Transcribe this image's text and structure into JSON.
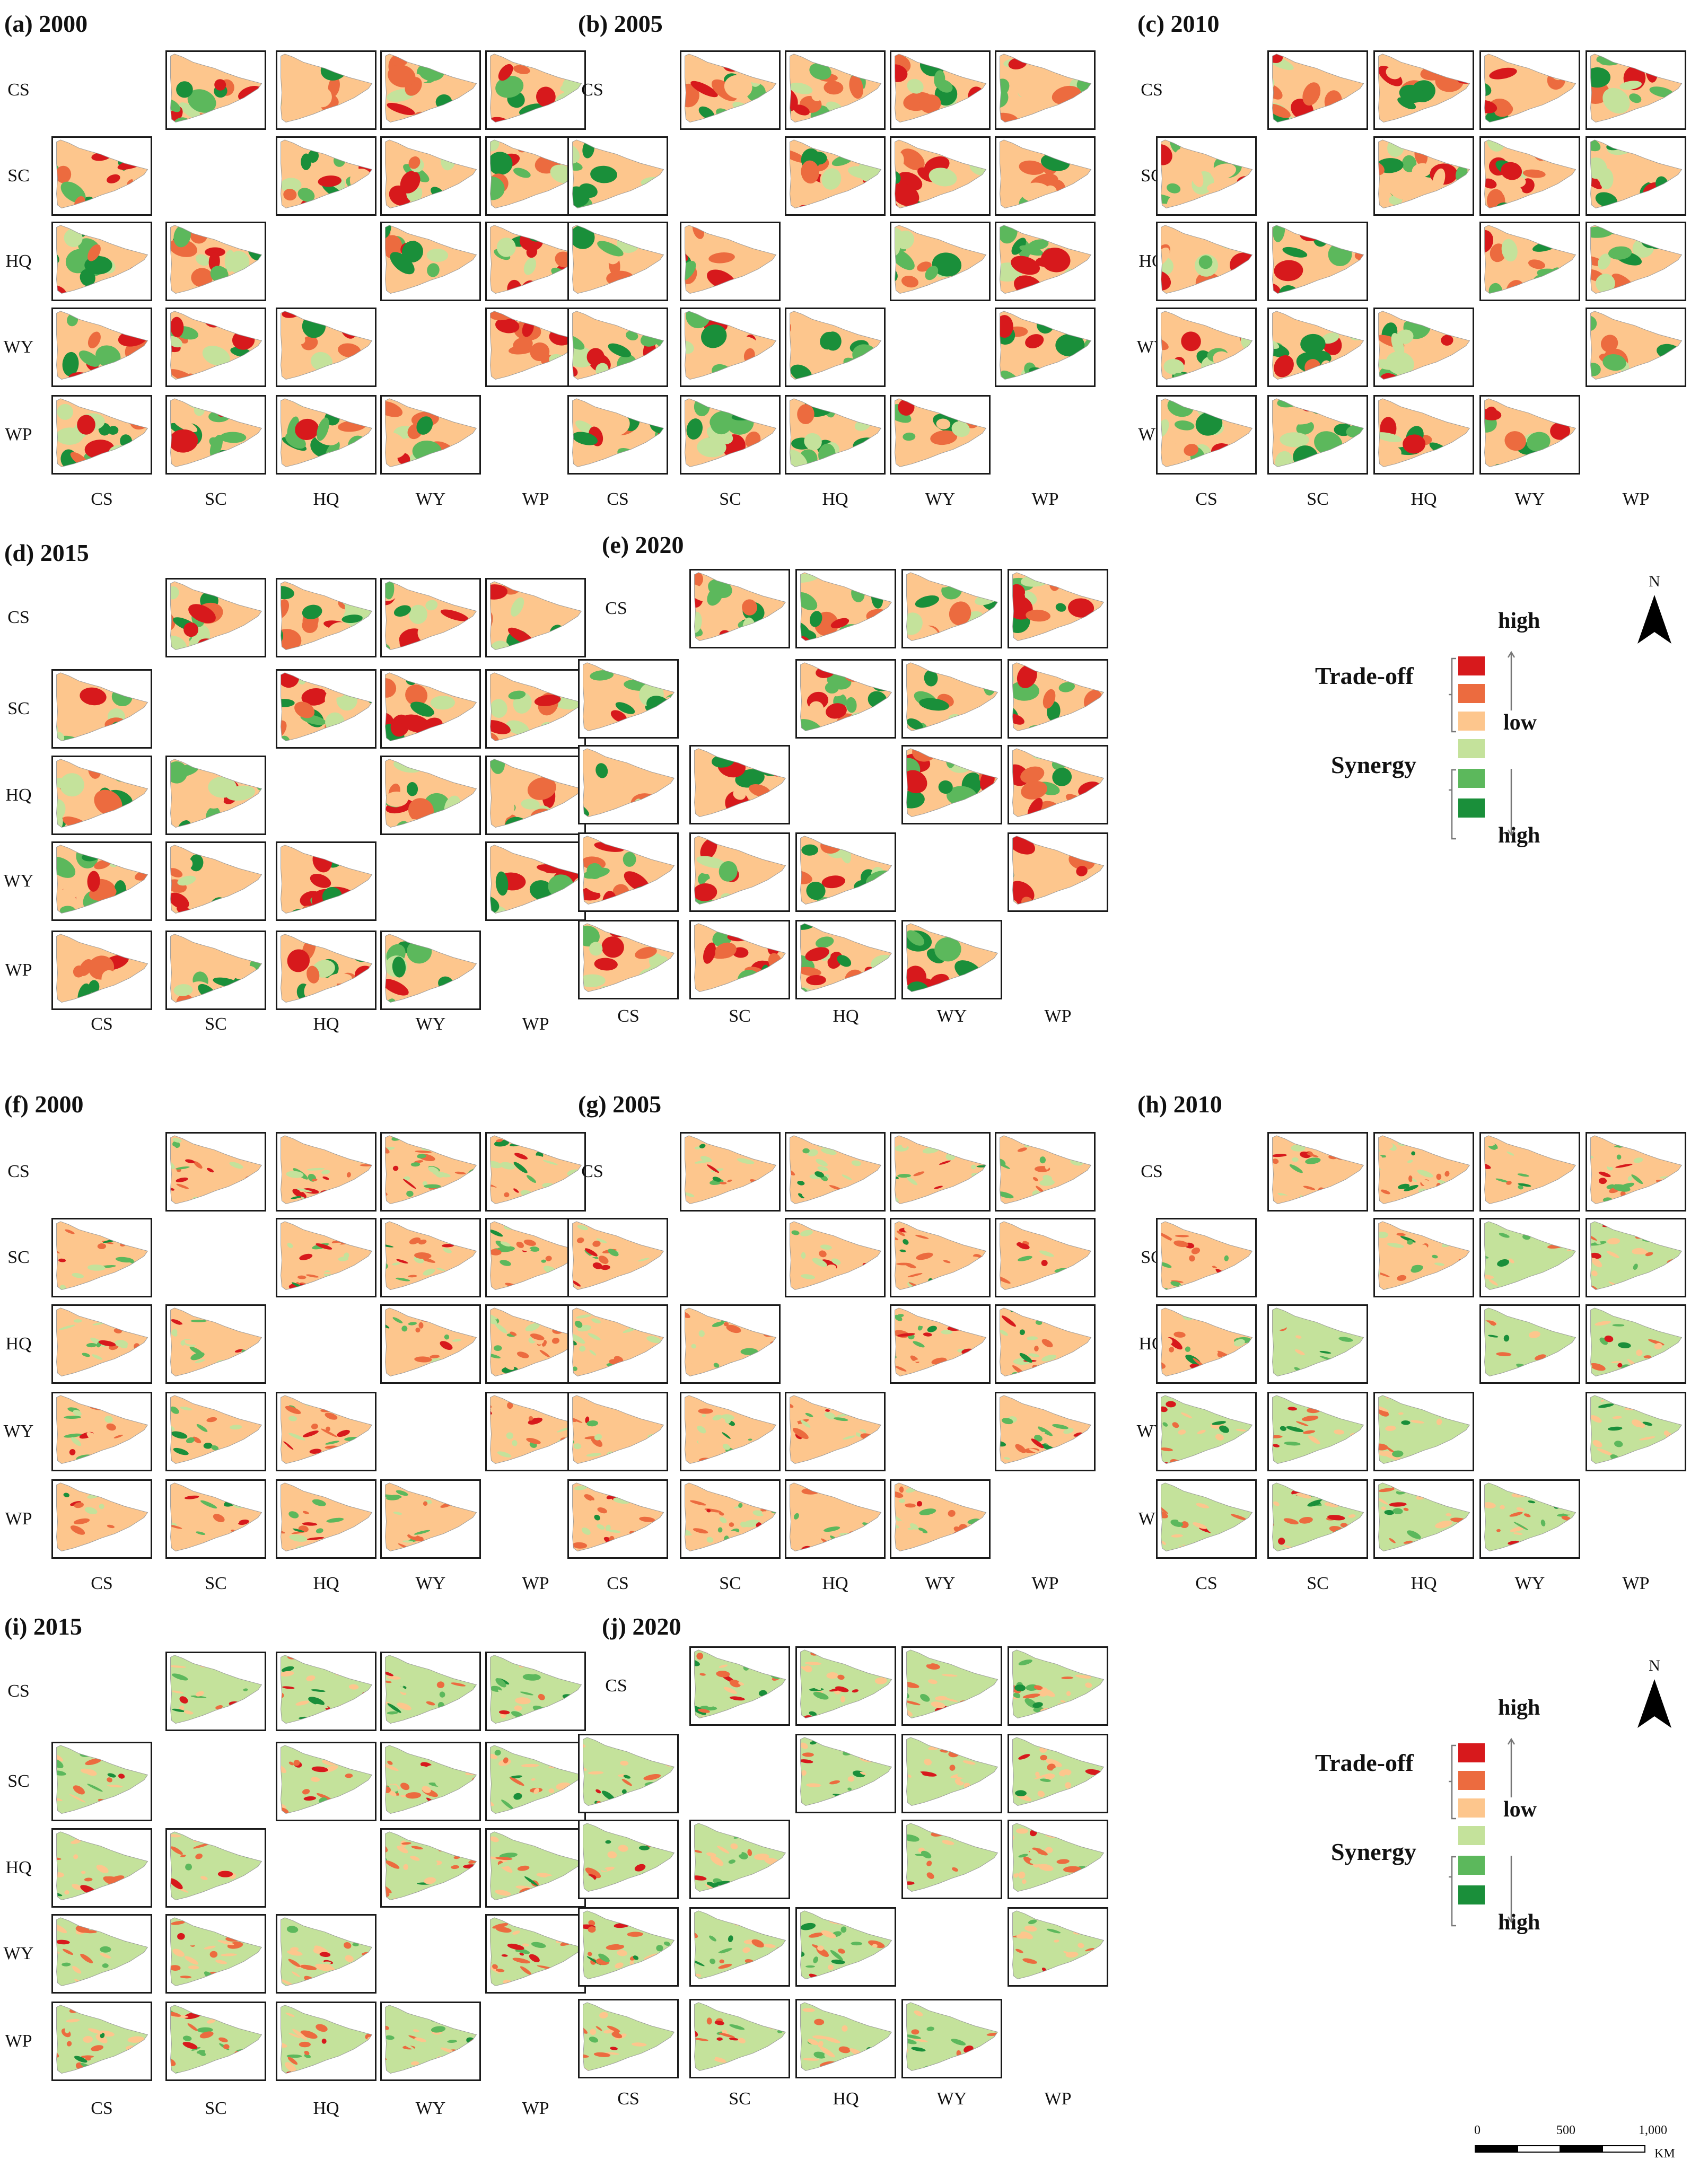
{
  "variables": [
    "CS",
    "SC",
    "HQ",
    "WY",
    "WP"
  ],
  "panels": [
    {
      "id": "a",
      "title": "(a) 2000",
      "palette": "A"
    },
    {
      "id": "b",
      "title": "(b) 2005",
      "palette": "A"
    },
    {
      "id": "c",
      "title": "(c) 2010",
      "palette": "A"
    },
    {
      "id": "d",
      "title": "(d) 2015",
      "palette": "A"
    },
    {
      "id": "e",
      "title": "(e) 2020",
      "palette": "A"
    },
    {
      "id": "f",
      "title": "(f) 2000",
      "palette": "B"
    },
    {
      "id": "g",
      "title": "(g) 2005",
      "palette": "B"
    },
    {
      "id": "h",
      "title": "(h) 2010",
      "palette": "B"
    },
    {
      "id": "i",
      "title": "(i) 2015",
      "palette": "B"
    },
    {
      "id": "j",
      "title": "(j) 2020",
      "palette": "B"
    }
  ],
  "legend": {
    "tradeoff_label": "Trade-off",
    "synergy_label": "Synergy",
    "high_label": "high",
    "low_label": "low",
    "colors": [
      "#d7191c",
      "#ec6b3f",
      "#fdc68d",
      "#c4e29b",
      "#5cb85c",
      "#1a8f3a"
    ]
  },
  "north_label": "N",
  "scale": {
    "ticks": [
      "0",
      "500",
      "1,000"
    ],
    "unit": "KM"
  }
}
